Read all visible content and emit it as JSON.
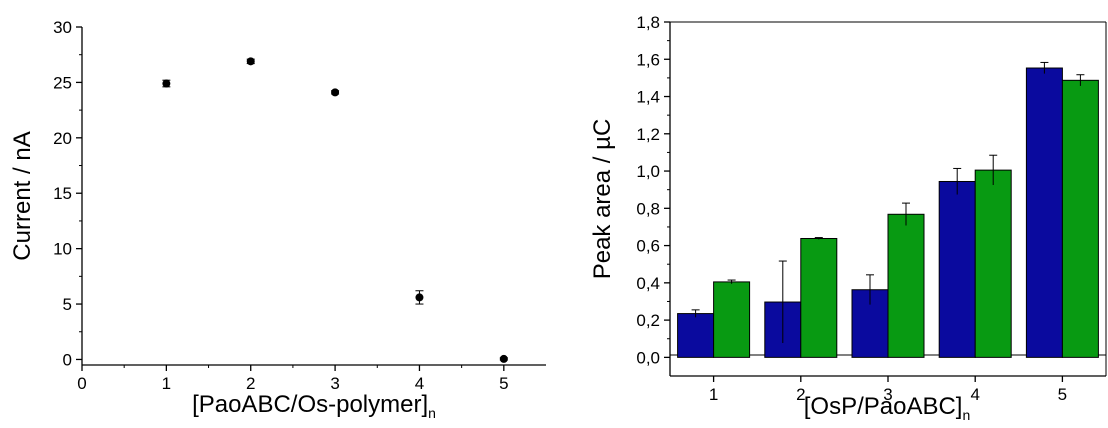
{
  "chart_data": [
    {
      "type": "scatter",
      "xlabel": "[PaoABC/Os-polymer]",
      "xlabel_subscript": "n",
      "ylabel": "Current / nA",
      "xlim": [
        0,
        5.5
      ],
      "ylim": [
        -0.5,
        30
      ],
      "xticks": [
        0,
        1,
        2,
        3,
        4,
        5
      ],
      "xtick_labels": [
        "0",
        "1",
        "2",
        "3",
        "4",
        "5"
      ],
      "yticks": [
        0,
        5,
        10,
        15,
        20,
        25,
        30
      ],
      "ytick_labels": [
        "0",
        "5",
        "10",
        "15",
        "20",
        "25",
        "30"
      ],
      "grid": false,
      "marker_color": "#000000",
      "points": [
        {
          "x": 1,
          "y": 24.9,
          "err": 0.3
        },
        {
          "x": 2,
          "y": 26.9,
          "err": 0.2
        },
        {
          "x": 3,
          "y": 24.1,
          "err": 0.15
        },
        {
          "x": 4,
          "y": 5.6,
          "err": 0.6
        },
        {
          "x": 5,
          "y": 0.05,
          "err": 0.1
        }
      ]
    },
    {
      "type": "bar",
      "xlabel": "[OsP/PaoABC]",
      "xlabel_subscript": "n",
      "ylabel": "Peak area / µC",
      "categories": [
        "1",
        "2",
        "3",
        "4",
        "5"
      ],
      "ylim": [
        -0.1,
        1.8
      ],
      "yticks": [
        0.0,
        0.2,
        0.4,
        0.6,
        0.8,
        1.0,
        1.2,
        1.4,
        1.6,
        1.8
      ],
      "ytick_labels": [
        "0,0",
        "0,2",
        "0,4",
        "0,6",
        "0,8",
        "1,0",
        "1,2",
        "1,4",
        "1,6",
        "1,8"
      ],
      "grid": false,
      "series": [
        {
          "color": "#0a0a9e",
          "values": [
            0.235,
            0.297,
            0.363,
            0.944,
            1.553
          ],
          "errors": [
            0.02,
            0.22,
            0.08,
            0.07,
            0.03
          ]
        },
        {
          "color": "#089a12",
          "values": [
            0.405,
            0.638,
            0.768,
            1.005,
            1.487
          ],
          "errors": [
            0.01,
            0.005,
            0.06,
            0.08,
            0.03
          ]
        }
      ]
    }
  ]
}
